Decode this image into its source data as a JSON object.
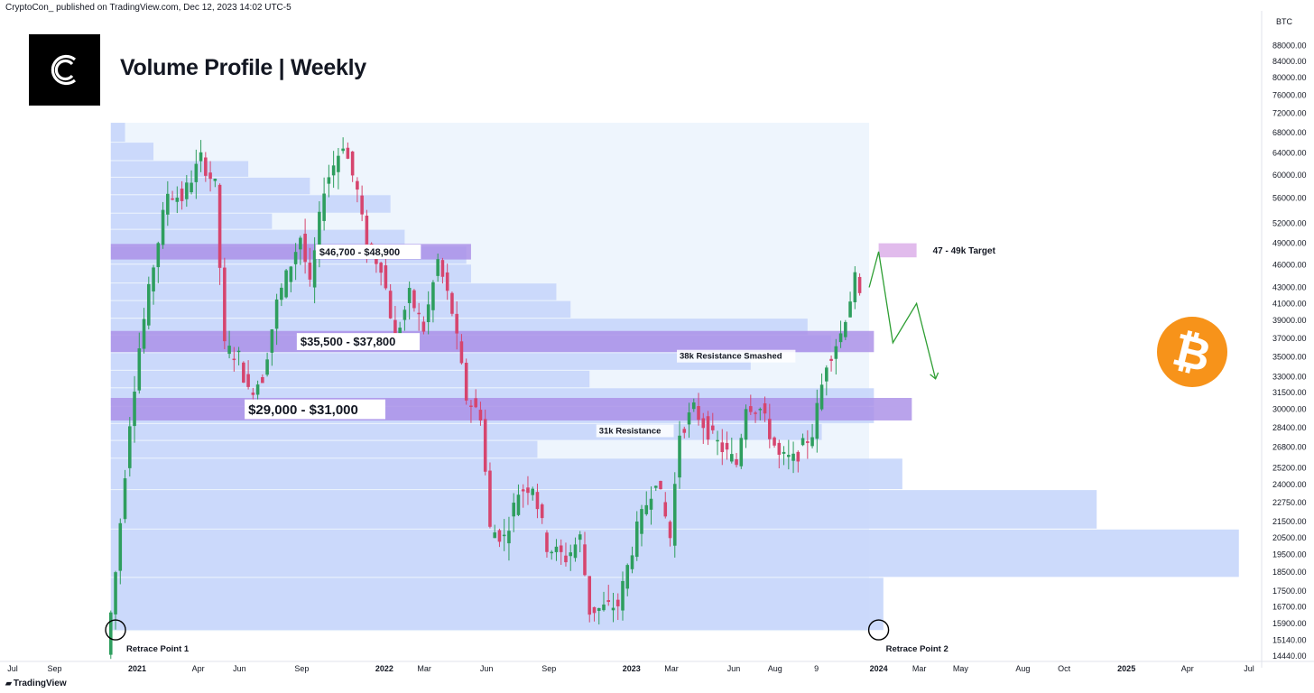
{
  "header": {
    "publisher_line": "CryptoCon_ published on TradingView.com, Dec 12, 2023 14:02 UTC-5"
  },
  "logo": {
    "name": "cryptocon-logo",
    "glyph": "C",
    "bg": "#000000",
    "fg": "#ffffff"
  },
  "title": "Volume Profile | Weekly",
  "footer": {
    "brand": "TradingView"
  },
  "colors": {
    "up": "#2e9e5e",
    "down": "#d6456e",
    "profile_bar": "#c6d6fb",
    "profile_bg": "#eef5fd",
    "zone": "#a98fe6",
    "target_zone": "#e1bbec",
    "projection": "#2e9e33",
    "bitcoin": "#f7931a"
  },
  "chart_data": {
    "type": "candlestick",
    "instrument": "BTC",
    "y_scale": "log",
    "ylim": [
      14440,
      90000
    ],
    "y_ticks": [
      "88000.00",
      "84000.00",
      "80000.00",
      "76000.00",
      "72000.00",
      "68000.00",
      "64000.00",
      "60000.00",
      "56000.00",
      "52000.00",
      "49000.00",
      "46000.00",
      "43000.00",
      "41000.00",
      "39000.00",
      "37000.00",
      "35000.00",
      "33000.00",
      "31500.00",
      "30000.00",
      "28400.00",
      "26800.00",
      "25200.00",
      "24000.00",
      "22750.00",
      "21500.00",
      "20500.00",
      "19500.00",
      "18500.00",
      "17500.00",
      "16700.00",
      "15900.00",
      "15140.00",
      "14440.00"
    ],
    "x_ticks": [
      {
        "label": "Jul",
        "bold": false
      },
      {
        "label": "Sep",
        "bold": false
      },
      {
        "label": "2021",
        "bold": true
      },
      {
        "label": "Apr",
        "bold": false
      },
      {
        "label": "Jun",
        "bold": false
      },
      {
        "label": "Sep",
        "bold": false
      },
      {
        "label": "2022",
        "bold": true
      },
      {
        "label": "Mar",
        "bold": false
      },
      {
        "label": "Jun",
        "bold": false
      },
      {
        "label": "Sep",
        "bold": false
      },
      {
        "label": "2023",
        "bold": true
      },
      {
        "label": "Mar",
        "bold": false
      },
      {
        "label": "Jun",
        "bold": false
      },
      {
        "label": "Aug",
        "bold": false
      },
      {
        "label": "9",
        "bold": false
      },
      {
        "label": "2024",
        "bold": true
      },
      {
        "label": "Mar",
        "bold": false
      },
      {
        "label": "May",
        "bold": false
      },
      {
        "label": "Aug",
        "bold": false
      },
      {
        "label": "Oct",
        "bold": false
      },
      {
        "label": "2025",
        "bold": true
      },
      {
        "label": "Apr",
        "bold": false
      },
      {
        "label": "Jul",
        "bold": false
      }
    ],
    "price_path": [
      [
        "2020-11-23",
        14500
      ],
      [
        "2020-12-07",
        18500
      ],
      [
        "2020-12-28",
        29000
      ],
      [
        "2021-01-11",
        36000
      ],
      [
        "2021-02-01",
        46000
      ],
      [
        "2021-02-22",
        57000
      ],
      [
        "2021-03-15",
        56000
      ],
      [
        "2021-04-12",
        63000
      ],
      [
        "2021-05-03",
        58000
      ],
      [
        "2021-05-17",
        36000
      ],
      [
        "2021-06-07",
        35000
      ],
      [
        "2021-06-21",
        31500
      ],
      [
        "2021-07-12",
        33000
      ],
      [
        "2021-08-02",
        41000
      ],
      [
        "2021-09-06",
        50000
      ],
      [
        "2021-09-20",
        43000
      ],
      [
        "2021-10-11",
        58000
      ],
      [
        "2021-11-08",
        66000
      ],
      [
        "2021-11-29",
        57000
      ],
      [
        "2021-12-13",
        48000
      ],
      [
        "2022-01-03",
        46000
      ],
      [
        "2022-01-24",
        37000
      ],
      [
        "2022-02-14",
        42000
      ],
      [
        "2022-03-07",
        38000
      ],
      [
        "2022-03-28",
        46500
      ],
      [
        "2022-04-18",
        40000
      ],
      [
        "2022-05-09",
        31000
      ],
      [
        "2022-05-30",
        29500
      ],
      [
        "2022-06-13",
        21000
      ],
      [
        "2022-07-04",
        20500
      ],
      [
        "2022-07-25",
        23500
      ],
      [
        "2022-08-15",
        24000
      ],
      [
        "2022-09-05",
        20000
      ],
      [
        "2022-10-03",
        19300
      ],
      [
        "2022-10-24",
        20500
      ],
      [
        "2022-11-07",
        16500
      ],
      [
        "2022-12-19",
        16800
      ],
      [
        "2023-01-16",
        21000
      ],
      [
        "2023-02-13",
        24500
      ],
      [
        "2023-03-06",
        20500
      ],
      [
        "2023-03-20",
        28000
      ],
      [
        "2023-04-10",
        30000
      ],
      [
        "2023-05-08",
        27500
      ],
      [
        "2023-06-12",
        25500
      ],
      [
        "2023-06-26",
        30500
      ],
      [
        "2023-07-17",
        30000
      ],
      [
        "2023-08-14",
        26000
      ],
      [
        "2023-09-04",
        25800
      ],
      [
        "2023-10-02",
        28000
      ],
      [
        "2023-10-23",
        34500
      ],
      [
        "2023-11-13",
        37500
      ],
      [
        "2023-12-04",
        44000
      ],
      [
        "2023-12-11",
        41500
      ]
    ],
    "volume_profile": [
      {
        "lo": 66000,
        "hi": 70000,
        "extent": "2020-12-14"
      },
      {
        "lo": 62500,
        "hi": 66000,
        "extent": "2021-01-25"
      },
      {
        "lo": 59500,
        "hi": 62500,
        "extent": "2021-06-14"
      },
      {
        "lo": 56500,
        "hi": 59500,
        "extent": "2021-09-13"
      },
      {
        "lo": 53500,
        "hi": 56500,
        "extent": "2022-01-10"
      },
      {
        "lo": 51000,
        "hi": 53500,
        "extent": "2021-07-19"
      },
      {
        "lo": 48500,
        "hi": 51000,
        "extent": "2022-01-31"
      },
      {
        "lo": 46000,
        "hi": 48500,
        "extent": "2022-05-02"
      },
      {
        "lo": 43500,
        "hi": 46000,
        "extent": "2022-05-09"
      },
      {
        "lo": 41300,
        "hi": 43500,
        "extent": "2022-09-12"
      },
      {
        "lo": 39200,
        "hi": 41300,
        "extent": "2022-10-03"
      },
      {
        "lo": 37300,
        "hi": 39200,
        "extent": "2023-09-18"
      },
      {
        "lo": 35400,
        "hi": 37300,
        "extent": "2023-10-23"
      },
      {
        "lo": 33600,
        "hi": 35400,
        "extent": "2023-06-26"
      },
      {
        "lo": 31900,
        "hi": 33600,
        "extent": "2022-10-31"
      },
      {
        "lo": 30200,
        "hi": 31900,
        "extent": "2023-12-25"
      },
      {
        "lo": 28700,
        "hi": 30200,
        "extent": "2023-12-25"
      },
      {
        "lo": 27300,
        "hi": 28700,
        "extent": "2023-10-09"
      },
      {
        "lo": 25900,
        "hi": 27300,
        "extent": "2022-08-15"
      },
      {
        "lo": 23600,
        "hi": 25900,
        "extent": "2024-02-05"
      },
      {
        "lo": 21000,
        "hi": 23600,
        "extent": "2024-11-18"
      },
      {
        "lo": 18200,
        "hi": 21000,
        "extent": "2025-06-16"
      },
      {
        "lo": 15550,
        "hi": 18200,
        "extent": "2024-01-08"
      }
    ],
    "zones": [
      {
        "label": "$46,700 - $48,900",
        "lo": 46700,
        "hi": 48900,
        "extent": "2022-05-09"
      },
      {
        "label": "$35,500 - $37,800",
        "lo": 35500,
        "hi": 37800,
        "extent": "2023-12-25"
      },
      {
        "label": "$29,000 - $31,000",
        "lo": 29000,
        "hi": 31000,
        "extent": "2024-02-19"
      }
    ],
    "target": {
      "label": "47 - 49k Target",
      "lo": 47000,
      "hi": 49000,
      "start": "2024-01-01",
      "end": "2024-02-26"
    },
    "projection_path": [
      [
        "2023-12-18",
        43000
      ],
      [
        "2024-01-01",
        47800
      ],
      [
        "2024-01-22",
        36500
      ],
      [
        "2024-02-26",
        41000
      ],
      [
        "2024-03-25",
        32800
      ]
    ],
    "annotations": [
      {
        "text": "38k Resistance Smashed",
        "date": "2023-03-13",
        "price": 34800
      },
      {
        "text": "31k Resistance",
        "date": "2022-11-14",
        "price": 27900
      }
    ],
    "retrace_points": [
      {
        "label": "Retrace Point 1",
        "date": "2020-11-30",
        "price": 15600
      },
      {
        "label": "Retrace Point 2",
        "date": "2024-01-01",
        "price": 15600
      }
    ]
  }
}
